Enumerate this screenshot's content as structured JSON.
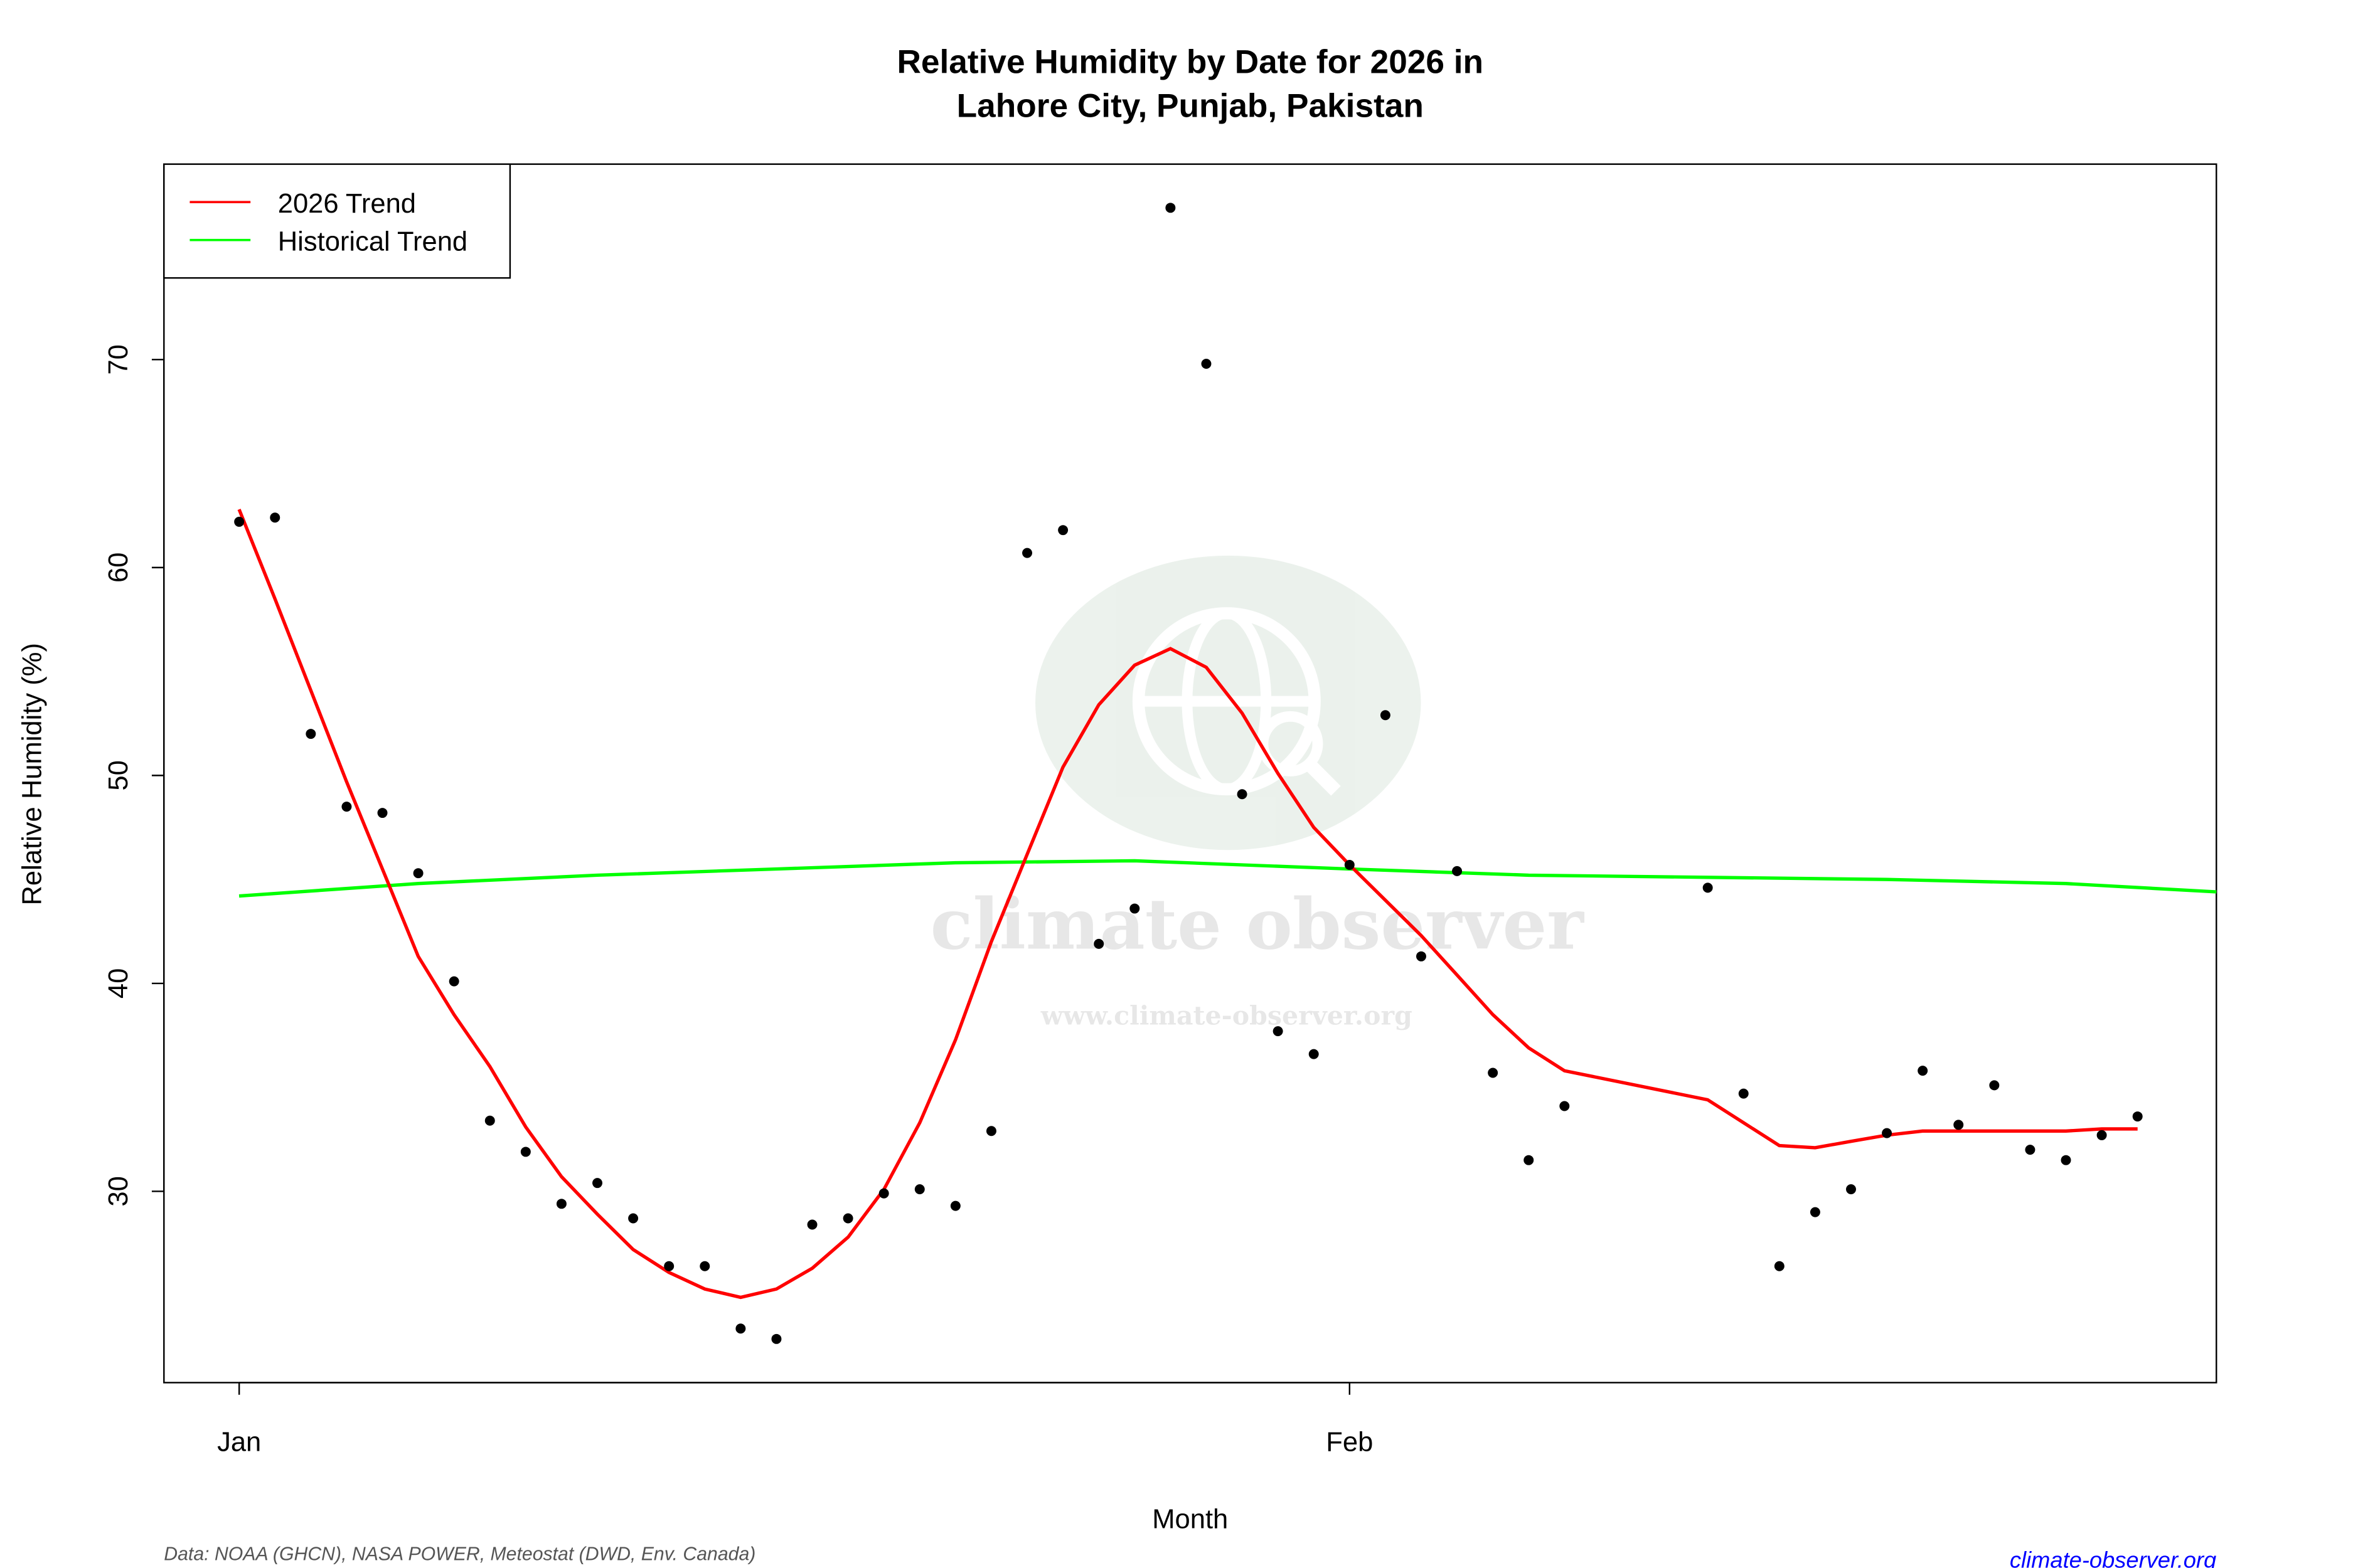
{
  "chart_data": {
    "type": "scatter",
    "title": "Relative Humidity by Date for 2026 in",
    "subtitle": "Lahore City, Punjab, Pakistan",
    "xlabel": "Month",
    "ylabel": "Relative Humidity (%)",
    "x_ticks": [
      {
        "day": 0,
        "label": "Jan"
      },
      {
        "day": 31,
        "label": "Feb"
      }
    ],
    "y_ticks": [
      30,
      40,
      50,
      60,
      70
    ],
    "xlim": [
      -2.1,
      55.2
    ],
    "ylim": [
      20.8,
      79.4
    ],
    "grid": false,
    "legend": {
      "position": "top-left",
      "entries": [
        {
          "label": "2026 Trend",
          "color": "#ff0000"
        },
        {
          "label": "Historical Trend",
          "color": "#00ff00"
        }
      ]
    },
    "observations": {
      "x_day": [
        0,
        1,
        2,
        3,
        4,
        5,
        6,
        7,
        8,
        9,
        10,
        11,
        12,
        13,
        14,
        15,
        16,
        17,
        18,
        19,
        20,
        21,
        22,
        23,
        24,
        25,
        26,
        27,
        28,
        29,
        30,
        31,
        32,
        33,
        34,
        35,
        36,
        37,
        41,
        42,
        43,
        44,
        45,
        46,
        47,
        48,
        49,
        50,
        51,
        52,
        53
      ],
      "y": [
        62.2,
        62.4,
        52.0,
        48.5,
        48.2,
        45.3,
        40.1,
        33.4,
        31.9,
        29.4,
        30.4,
        28.7,
        26.4,
        26.4,
        23.4,
        22.9,
        28.4,
        28.7,
        29.9,
        30.1,
        29.3,
        32.9,
        60.7,
        61.8,
        41.9,
        43.6,
        77.3,
        69.8,
        49.1,
        37.7,
        36.6,
        45.7,
        52.9,
        41.3,
        45.4,
        35.7,
        31.5,
        34.1,
        44.6,
        34.7,
        26.4,
        29.0,
        30.1,
        32.8,
        35.8,
        33.2,
        35.1,
        32.0,
        31.5,
        32.7,
        33.6
      ],
      "color": "#000000"
    },
    "series": [
      {
        "name": "2026 Trend",
        "color": "#ff0000",
        "x_day": [
          0,
          1,
          2,
          3,
          4,
          5,
          6,
          7,
          8,
          9,
          10,
          11,
          12,
          13,
          14,
          15,
          16,
          17,
          18,
          19,
          20,
          21,
          22,
          23,
          24,
          25,
          26,
          27,
          28,
          29,
          30,
          31,
          32,
          33,
          34,
          35,
          36,
          37,
          41,
          42,
          43,
          44,
          45,
          46,
          47,
          48,
          49,
          50,
          51,
          52,
          53
        ],
        "y": [
          62.8,
          58.5,
          54.1,
          49.7,
          45.5,
          41.3,
          38.5,
          36.0,
          33.1,
          30.7,
          28.9,
          27.2,
          26.1,
          25.3,
          24.9,
          25.3,
          26.3,
          27.8,
          30.1,
          33.3,
          37.3,
          42.0,
          46.2,
          50.4,
          53.4,
          55.3,
          56.1,
          55.2,
          53.0,
          50.1,
          47.5,
          45.7,
          44.0,
          42.3,
          40.4,
          38.5,
          36.9,
          35.8,
          34.4,
          33.3,
          32.2,
          32.1,
          32.4,
          32.7,
          32.9,
          32.9,
          32.9,
          32.9,
          32.9,
          33.0,
          33.0
        ]
      },
      {
        "name": "Historical Trend",
        "color": "#00ff00",
        "x_day": [
          0,
          5,
          10,
          15,
          20,
          25,
          31,
          36,
          41,
          46,
          51,
          55.2
        ],
        "y": [
          44.2,
          44.8,
          45.2,
          45.5,
          45.8,
          45.9,
          45.5,
          45.2,
          45.1,
          45.0,
          44.8,
          44.4
        ]
      }
    ]
  },
  "footer": {
    "source": "Data: NOAA (GHCN), NASA POWER, Meteostat (DWD, Env. Canada)",
    "site": "climate-observer.org",
    "site_color": "#0000ff"
  },
  "watermark": {
    "name": "climate observer",
    "url": "www.climate-observer.org"
  }
}
